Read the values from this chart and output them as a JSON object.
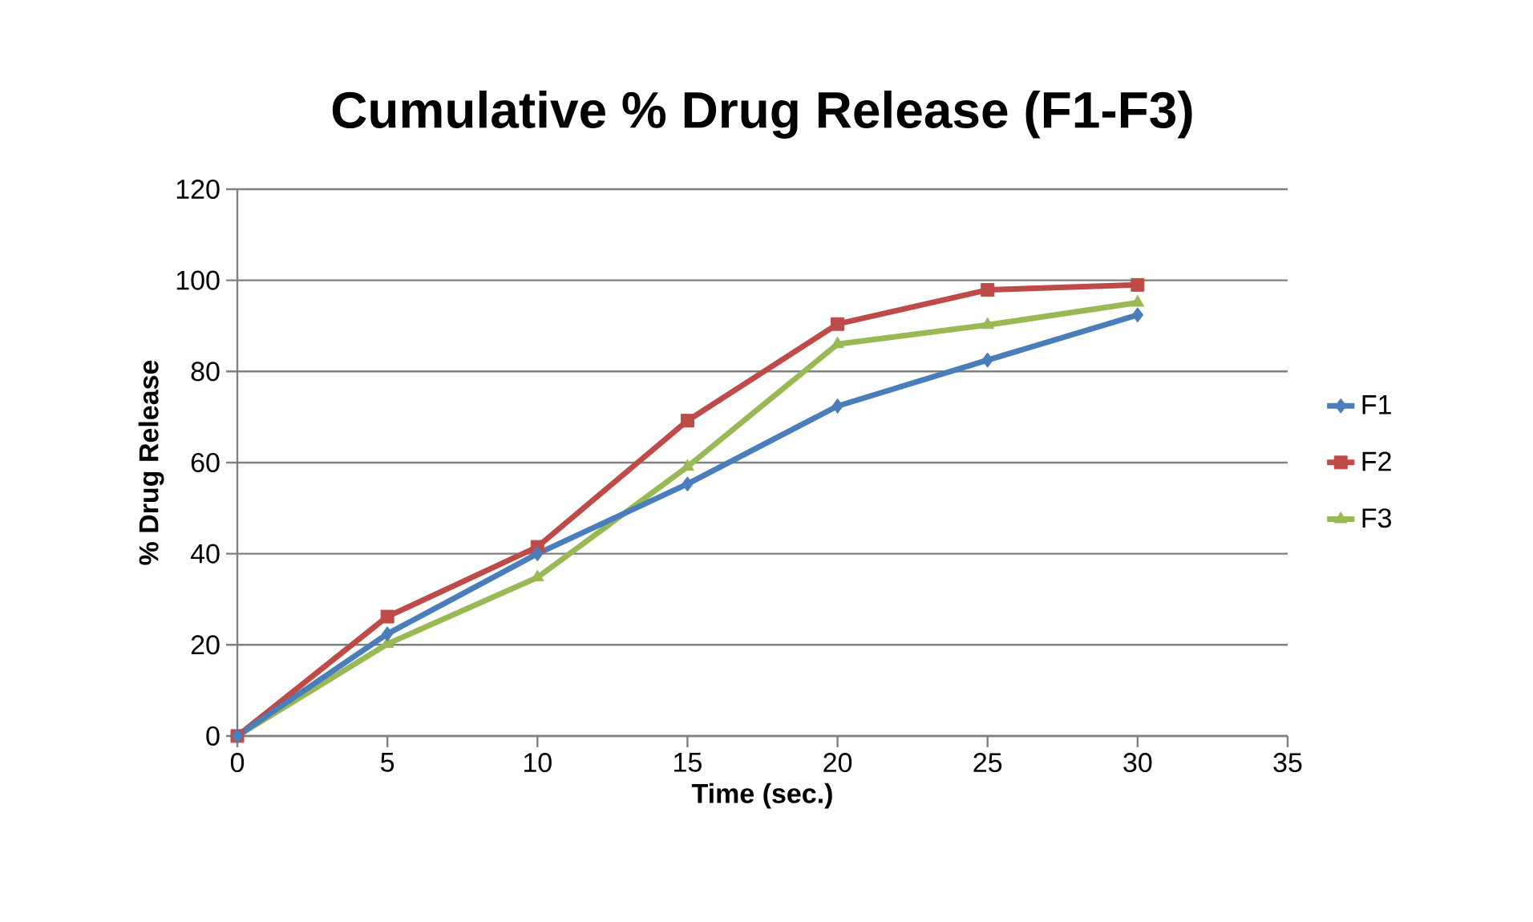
{
  "chart_data": {
    "type": "line",
    "title": "Cumulative % Drug Release (F1-F3)",
    "xlabel": "Time (sec.)",
    "ylabel": "% Drug Release",
    "x": [
      0,
      5,
      10,
      15,
      20,
      25,
      30
    ],
    "series": [
      {
        "name": "F1",
        "color": "#4a7ebb",
        "marker": "diamond",
        "values": [
          0,
          22.4,
          40,
          55.3,
          72.4,
          82.5,
          92.4
        ]
      },
      {
        "name": "F2",
        "color": "#be4b48",
        "marker": "square",
        "values": [
          0,
          26.2,
          41.5,
          69.2,
          90.4,
          97.9,
          99
        ]
      },
      {
        "name": "F3",
        "color": "#98b954",
        "marker": "triangle",
        "values": [
          0,
          20.2,
          34.8,
          59.1,
          86,
          90.2,
          95.1
        ]
      }
    ],
    "xlim": [
      0,
      35
    ],
    "xticks": [
      0,
      5,
      10,
      15,
      20,
      25,
      30,
      35
    ],
    "ylim": [
      0,
      120
    ],
    "yticks": [
      0,
      20,
      40,
      60,
      80,
      100,
      120
    ],
    "grid": "y",
    "legend": "right",
    "line_style": "solid"
  }
}
